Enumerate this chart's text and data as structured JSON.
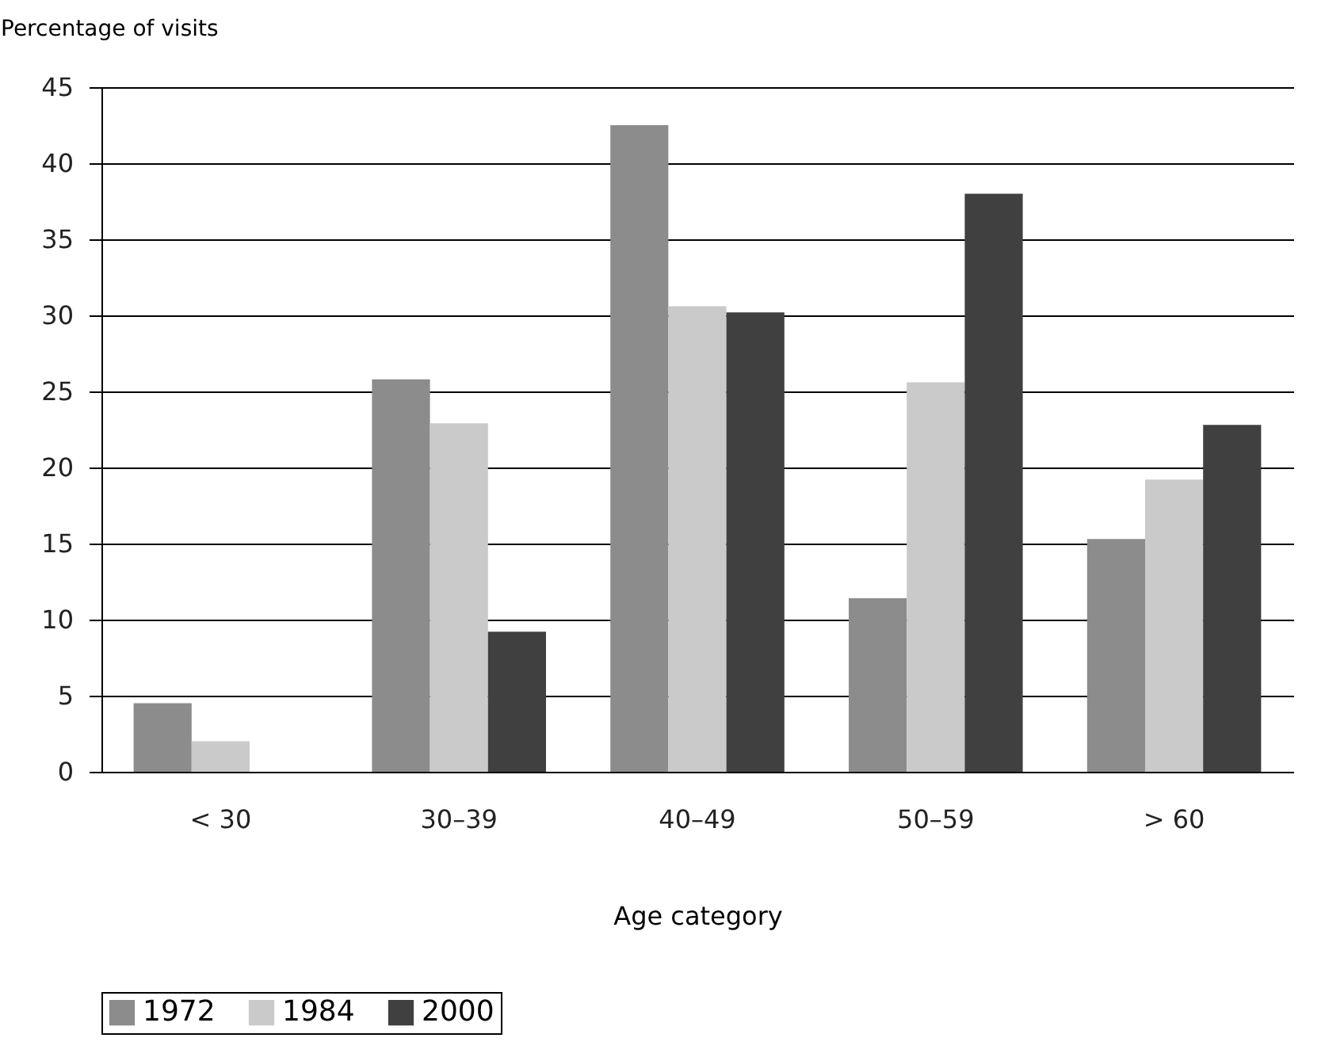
{
  "chart_data": {
    "type": "bar",
    "xlabel": "Age category",
    "ylabel": "Percentage of visits",
    "categories": [
      "< 30",
      "30–39",
      "40–49",
      "50–59",
      "> 60"
    ],
    "series": [
      {
        "name": "1972",
        "color": "#8c8c8c",
        "values": [
          4.5,
          25.8,
          42.5,
          11.4,
          15.3
        ]
      },
      {
        "name": "1984",
        "color": "#cacaca",
        "values": [
          2.0,
          22.9,
          30.6,
          25.6,
          19.2
        ]
      },
      {
        "name": "2000",
        "color": "#404040",
        "values": [
          0,
          9.2,
          30.2,
          38.0,
          22.8
        ]
      }
    ],
    "ylim": [
      0,
      45
    ],
    "yticks": [
      0,
      5,
      10,
      15,
      20,
      25,
      30,
      35,
      40,
      45
    ],
    "grid": "y",
    "legend": "bottom"
  }
}
